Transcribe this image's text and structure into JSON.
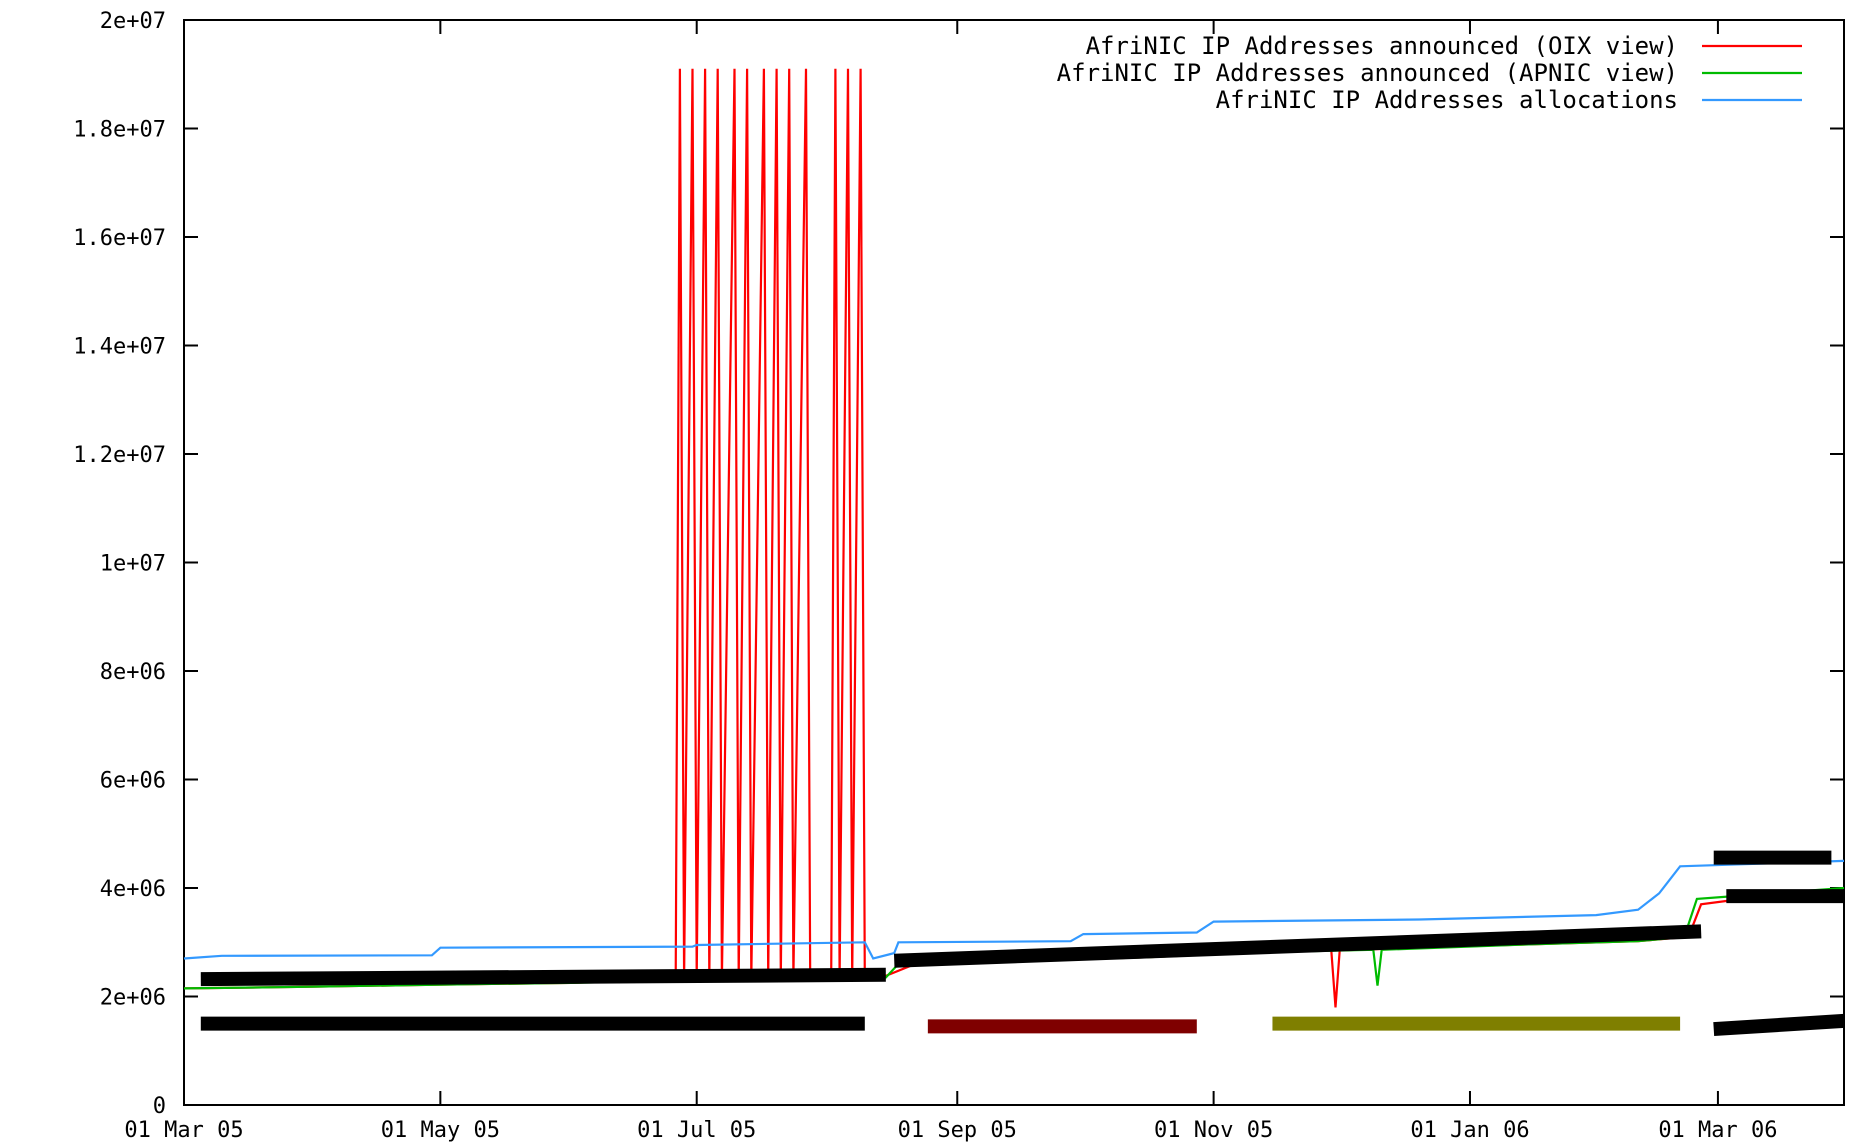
{
  "chart_data": {
    "type": "line",
    "title": "",
    "xlabel": "",
    "ylabel": "",
    "x_ticks": [
      "01 Mar 05",
      "01 May 05",
      "01 Jul 05",
      "01 Sep 05",
      "01 Nov 05",
      "01 Jan 06",
      "01 Mar 06"
    ],
    "x_range": [
      "2005-03-01",
      "2006-03-31"
    ],
    "ylim": [
      0,
      20000000
    ],
    "y_ticks": [
      {
        "value": 0,
        "label": "0"
      },
      {
        "value": 2000000,
        "label": "2e+06"
      },
      {
        "value": 4000000,
        "label": "4e+06"
      },
      {
        "value": 6000000,
        "label": "6e+06"
      },
      {
        "value": 8000000,
        "label": "8e+06"
      },
      {
        "value": 10000000,
        "label": "1e+07"
      },
      {
        "value": 12000000,
        "label": "1.2e+07"
      },
      {
        "value": 14000000,
        "label": "1.4e+07"
      },
      {
        "value": 16000000,
        "label": "1.6e+07"
      },
      {
        "value": 18000000,
        "label": "1.8e+07"
      },
      {
        "value": 20000000,
        "label": "2e+07"
      }
    ],
    "grid": false,
    "legend_position": "top-right",
    "series": [
      {
        "name": "AfriNIC IP Addresses announced (OIX view)",
        "color": "#ff0000",
        "points": [
          [
            "2005-03-01",
            2150000
          ],
          [
            "2005-04-01",
            2180000
          ],
          [
            "2005-05-01",
            2220000
          ],
          [
            "2005-06-01",
            2250000
          ],
          [
            "2005-06-26",
            2320000
          ],
          [
            "2005-06-27",
            19100000
          ],
          [
            "2005-06-28",
            2320000
          ],
          [
            "2005-06-30",
            19100000
          ],
          [
            "2005-07-01",
            2330000
          ],
          [
            "2005-07-03",
            19100000
          ],
          [
            "2005-07-04",
            2330000
          ],
          [
            "2005-07-06",
            19100000
          ],
          [
            "2005-07-07",
            2330000
          ],
          [
            "2005-07-10",
            19100000
          ],
          [
            "2005-07-11",
            2330000
          ],
          [
            "2005-07-13",
            19100000
          ],
          [
            "2005-07-14",
            2330000
          ],
          [
            "2005-07-17",
            19100000
          ],
          [
            "2005-07-18",
            2340000
          ],
          [
            "2005-07-20",
            19100000
          ],
          [
            "2005-07-21",
            2340000
          ],
          [
            "2005-07-23",
            19100000
          ],
          [
            "2005-07-24",
            2340000
          ],
          [
            "2005-07-27",
            19100000
          ],
          [
            "2005-07-28",
            2340000
          ],
          [
            "2005-08-02",
            2340000
          ],
          [
            "2005-08-03",
            19100000
          ],
          [
            "2005-08-04",
            2340000
          ],
          [
            "2005-08-06",
            19100000
          ],
          [
            "2005-08-07",
            2340000
          ],
          [
            "2005-08-09",
            19100000
          ],
          [
            "2005-08-10",
            2340000
          ],
          [
            "2005-08-14",
            2350000
          ],
          [
            "2005-08-22",
            2600000
          ],
          [
            "2005-09-15",
            2650000
          ],
          [
            "2005-10-15",
            2720000
          ],
          [
            "2005-11-15",
            2820000
          ],
          [
            "2005-11-29",
            2850000
          ],
          [
            "2005-11-30",
            1800000
          ],
          [
            "2005-12-01",
            2850000
          ],
          [
            "2005-12-20",
            2900000
          ],
          [
            "2006-01-15",
            2960000
          ],
          [
            "2006-02-10",
            3020000
          ],
          [
            "2006-02-22",
            3100000
          ],
          [
            "2006-02-25",
            3700000
          ],
          [
            "2006-03-05",
            3780000
          ],
          [
            "2006-03-31",
            3850000
          ]
        ]
      },
      {
        "name": "AfriNIC IP Addresses announced (APNIC view)",
        "color": "#00bb00",
        "points": [
          [
            "2005-03-01",
            2150000
          ],
          [
            "2005-04-01",
            2180000
          ],
          [
            "2005-05-01",
            2220000
          ],
          [
            "2005-06-01",
            2250000
          ],
          [
            "2005-07-01",
            2300000
          ],
          [
            "2005-08-01",
            2330000
          ],
          [
            "2005-08-15",
            2350000
          ],
          [
            "2005-08-18",
            2600000
          ],
          [
            "2005-09-15",
            2650000
          ],
          [
            "2005-10-15",
            2720000
          ],
          [
            "2005-11-15",
            2820000
          ],
          [
            "2005-12-09",
            2860000
          ],
          [
            "2005-12-10",
            2200000
          ],
          [
            "2005-12-11",
            2860000
          ],
          [
            "2006-01-15",
            2960000
          ],
          [
            "2006-02-10",
            3020000
          ],
          [
            "2006-02-21",
            3100000
          ],
          [
            "2006-02-24",
            3800000
          ],
          [
            "2006-03-10",
            3880000
          ],
          [
            "2006-03-31",
            4000000
          ]
        ]
      },
      {
        "name": "AfriNIC IP Addresses allocations",
        "color": "#3399ff",
        "points": [
          [
            "2005-03-01",
            2700000
          ],
          [
            "2005-03-10",
            2750000
          ],
          [
            "2005-04-29",
            2760000
          ],
          [
            "2005-05-01",
            2900000
          ],
          [
            "2005-06-30",
            2920000
          ],
          [
            "2005-07-01",
            2950000
          ],
          [
            "2005-08-10",
            3000000
          ],
          [
            "2005-08-12",
            2700000
          ],
          [
            "2005-08-17",
            2800000
          ],
          [
            "2005-08-18",
            3000000
          ],
          [
            "2005-09-28",
            3020000
          ],
          [
            "2005-10-01",
            3150000
          ],
          [
            "2005-10-28",
            3180000
          ],
          [
            "2005-11-01",
            3380000
          ],
          [
            "2005-12-20",
            3420000
          ],
          [
            "2006-01-31",
            3500000
          ],
          [
            "2006-02-10",
            3600000
          ],
          [
            "2006-02-15",
            3900000
          ],
          [
            "2006-02-20",
            4400000
          ],
          [
            "2006-03-31",
            4500000
          ]
        ]
      }
    ],
    "overlays": [
      {
        "from": [
          "2005-03-05",
          2320000
        ],
        "to": [
          "2005-08-15",
          2400000
        ],
        "color": "#000000"
      },
      {
        "from": [
          "2005-08-17",
          2660000
        ],
        "to": [
          "2006-02-25",
          3200000
        ],
        "color": "#000000"
      },
      {
        "from": [
          "2006-02-28",
          4560000
        ],
        "to": [
          "2006-03-28",
          4560000
        ],
        "color": "#000000"
      },
      {
        "from": [
          "2006-03-03",
          3850000
        ],
        "to": [
          "2006-03-31",
          3850000
        ],
        "color": "#000000"
      },
      {
        "from": [
          "2005-03-05",
          1500000
        ],
        "to": [
          "2005-08-10",
          1500000
        ],
        "color": "#000000"
      },
      {
        "from": [
          "2005-08-25",
          1450000
        ],
        "to": [
          "2005-10-28",
          1450000
        ],
        "color": "#7f0000"
      },
      {
        "from": [
          "2005-11-15",
          1500000
        ],
        "to": [
          "2006-02-20",
          1500000
        ],
        "color": "#7f7f00"
      },
      {
        "from": [
          "2006-02-28",
          1400000
        ],
        "to": [
          "2006-03-31",
          1550000
        ],
        "color": "#000000"
      }
    ]
  }
}
